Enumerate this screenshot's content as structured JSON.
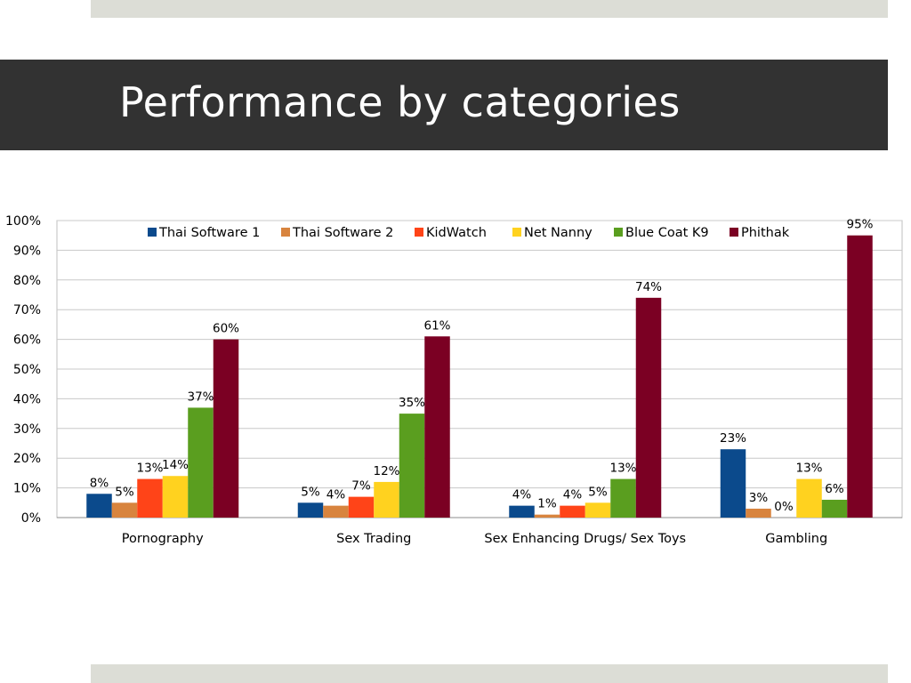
{
  "slide": {
    "title": "Performance by categories"
  },
  "colors": {
    "background": "#ffffff",
    "title_band": "#323232",
    "title_text": "#ffffff",
    "accent_strip": "#dcddd6",
    "gridline": "#c8c8c8"
  },
  "chart_data": {
    "type": "bar",
    "title": "",
    "xlabel": "",
    "ylabel": "",
    "ylim": [
      0,
      100
    ],
    "y_ticks": [
      "0%",
      "10%",
      "20%",
      "30%",
      "40%",
      "50%",
      "60%",
      "70%",
      "80%",
      "90%",
      "100%"
    ],
    "grid": true,
    "legend_position": "top",
    "categories": [
      "Pornography",
      "Sex Trading",
      "Sex Enhancing Drugs/ Sex Toys",
      "Gambling"
    ],
    "series": [
      {
        "name": "Thai Software 1",
        "color": "#0b4a8c",
        "values": [
          8,
          5,
          4,
          23
        ],
        "labels": [
          "8%",
          "5%",
          "4%",
          "23%"
        ]
      },
      {
        "name": "Thai Software 2",
        "color": "#d8843e",
        "values": [
          5,
          4,
          1,
          3
        ],
        "labels": [
          "5%",
          "4%",
          "1%",
          "3%"
        ]
      },
      {
        "name": "KidWatch",
        "color": "#ff4418",
        "values": [
          13,
          7,
          4,
          0
        ],
        "labels": [
          "13%",
          "7%",
          "4%",
          "0%"
        ]
      },
      {
        "name": "Net Nanny",
        "color": "#ffd21f",
        "values": [
          14,
          12,
          5,
          13
        ],
        "labels": [
          "14%",
          "12%",
          "5%",
          "13%"
        ]
      },
      {
        "name": "Blue Coat K9",
        "color": "#5a9e1f",
        "values": [
          37,
          35,
          13,
          6
        ],
        "labels": [
          "37%",
          "35%",
          "13%",
          "6%"
        ]
      },
      {
        "name": "Phithak",
        "color": "#7b0023",
        "values": [
          60,
          61,
          74,
          95
        ],
        "labels": [
          "60%",
          "61%",
          "74%",
          "95%"
        ]
      }
    ]
  }
}
